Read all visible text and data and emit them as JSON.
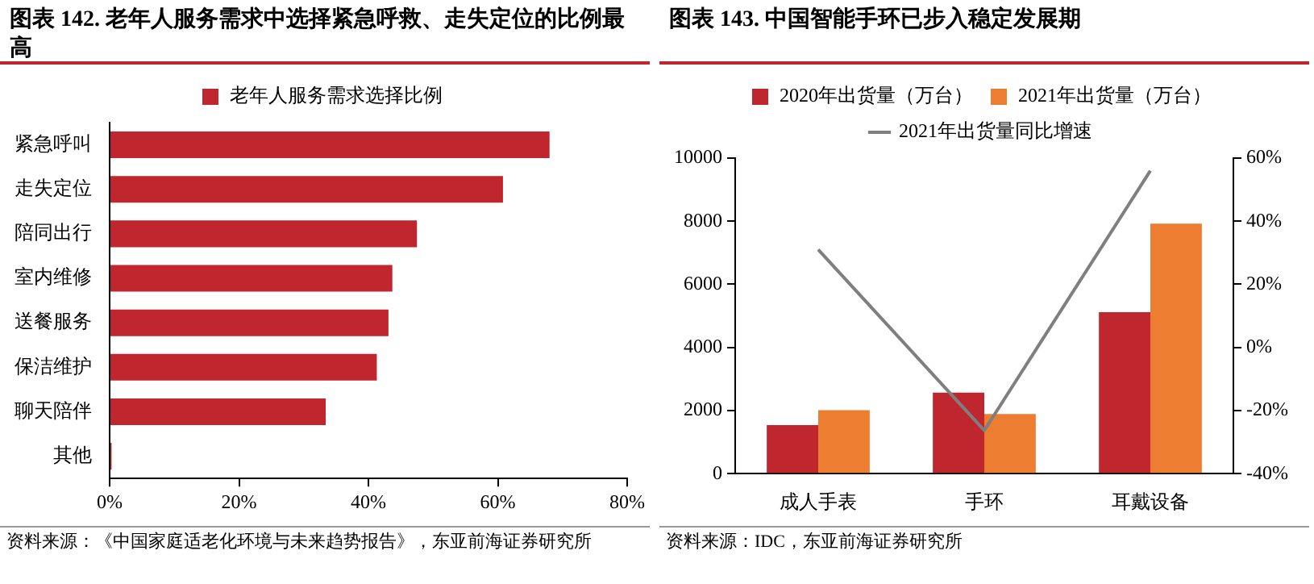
{
  "chart_data": [
    {
      "type": "bar",
      "title": "图表 142.  老年人服务需求中选择紧急呼救、走失定位的比例最高",
      "orientation": "horizontal",
      "categories": [
        "紧急呼叫",
        "走失定位",
        "陪同出行",
        "室内维修",
        "送餐服务",
        "保洁维护",
        "聊天陪伴",
        "其他"
      ],
      "series": [
        {
          "name": "老年人服务需求选择比例",
          "color": "#c0262d",
          "values": [
            68,
            60.8,
            47.5,
            43.7,
            43.1,
            41.3,
            33.4,
            0.3
          ]
        }
      ],
      "xlim": [
        0,
        80
      ],
      "xticks": [
        {
          "value": 0,
          "label": "0%"
        },
        {
          "value": 20,
          "label": "20%"
        },
        {
          "value": 40,
          "label": "40%"
        },
        {
          "value": 60,
          "label": "60%"
        },
        {
          "value": 80,
          "label": "80%"
        }
      ],
      "grid": false,
      "legend": "top",
      "annotations": [
        "资料来源：《中国家庭适老化环境与未来趋势报告》，东亚前海证券研究所"
      ]
    },
    {
      "type": "bar",
      "title": "图表 143.  中国智能手环已步入稳定发展期",
      "categories": [
        "成人手表",
        "手环",
        "耳戴设备"
      ],
      "series": [
        {
          "name": "2020年出货量（万台）",
          "color": "#c0262d",
          "values": [
            1540,
            2570,
            5120
          ]
        },
        {
          "name": "2021年出货量（万台）",
          "color": "#ed7d31",
          "values": [
            2010,
            1890,
            7920
          ]
        },
        {
          "name": "2021年出货量同比增速",
          "type": "line",
          "axis": "y2",
          "color": "#7f7f7f",
          "values": [
            31,
            -26.3,
            56
          ]
        }
      ],
      "ylim": [
        0,
        10000
      ],
      "yticks": [
        0,
        2000,
        4000,
        6000,
        8000,
        10000
      ],
      "y2lim": [
        -40,
        60
      ],
      "y2ticks": [
        {
          "value": -40,
          "label": "-40%"
        },
        {
          "value": -20,
          "label": "-20%"
        },
        {
          "value": 0,
          "label": "0%"
        },
        {
          "value": 20,
          "label": "20%"
        },
        {
          "value": 40,
          "label": "40%"
        },
        {
          "value": 60,
          "label": "60%"
        }
      ],
      "grid": false,
      "legend": "top",
      "marker": "none",
      "annotations": [
        "资料来源：IDC，东亚前海证券研究所"
      ]
    }
  ]
}
